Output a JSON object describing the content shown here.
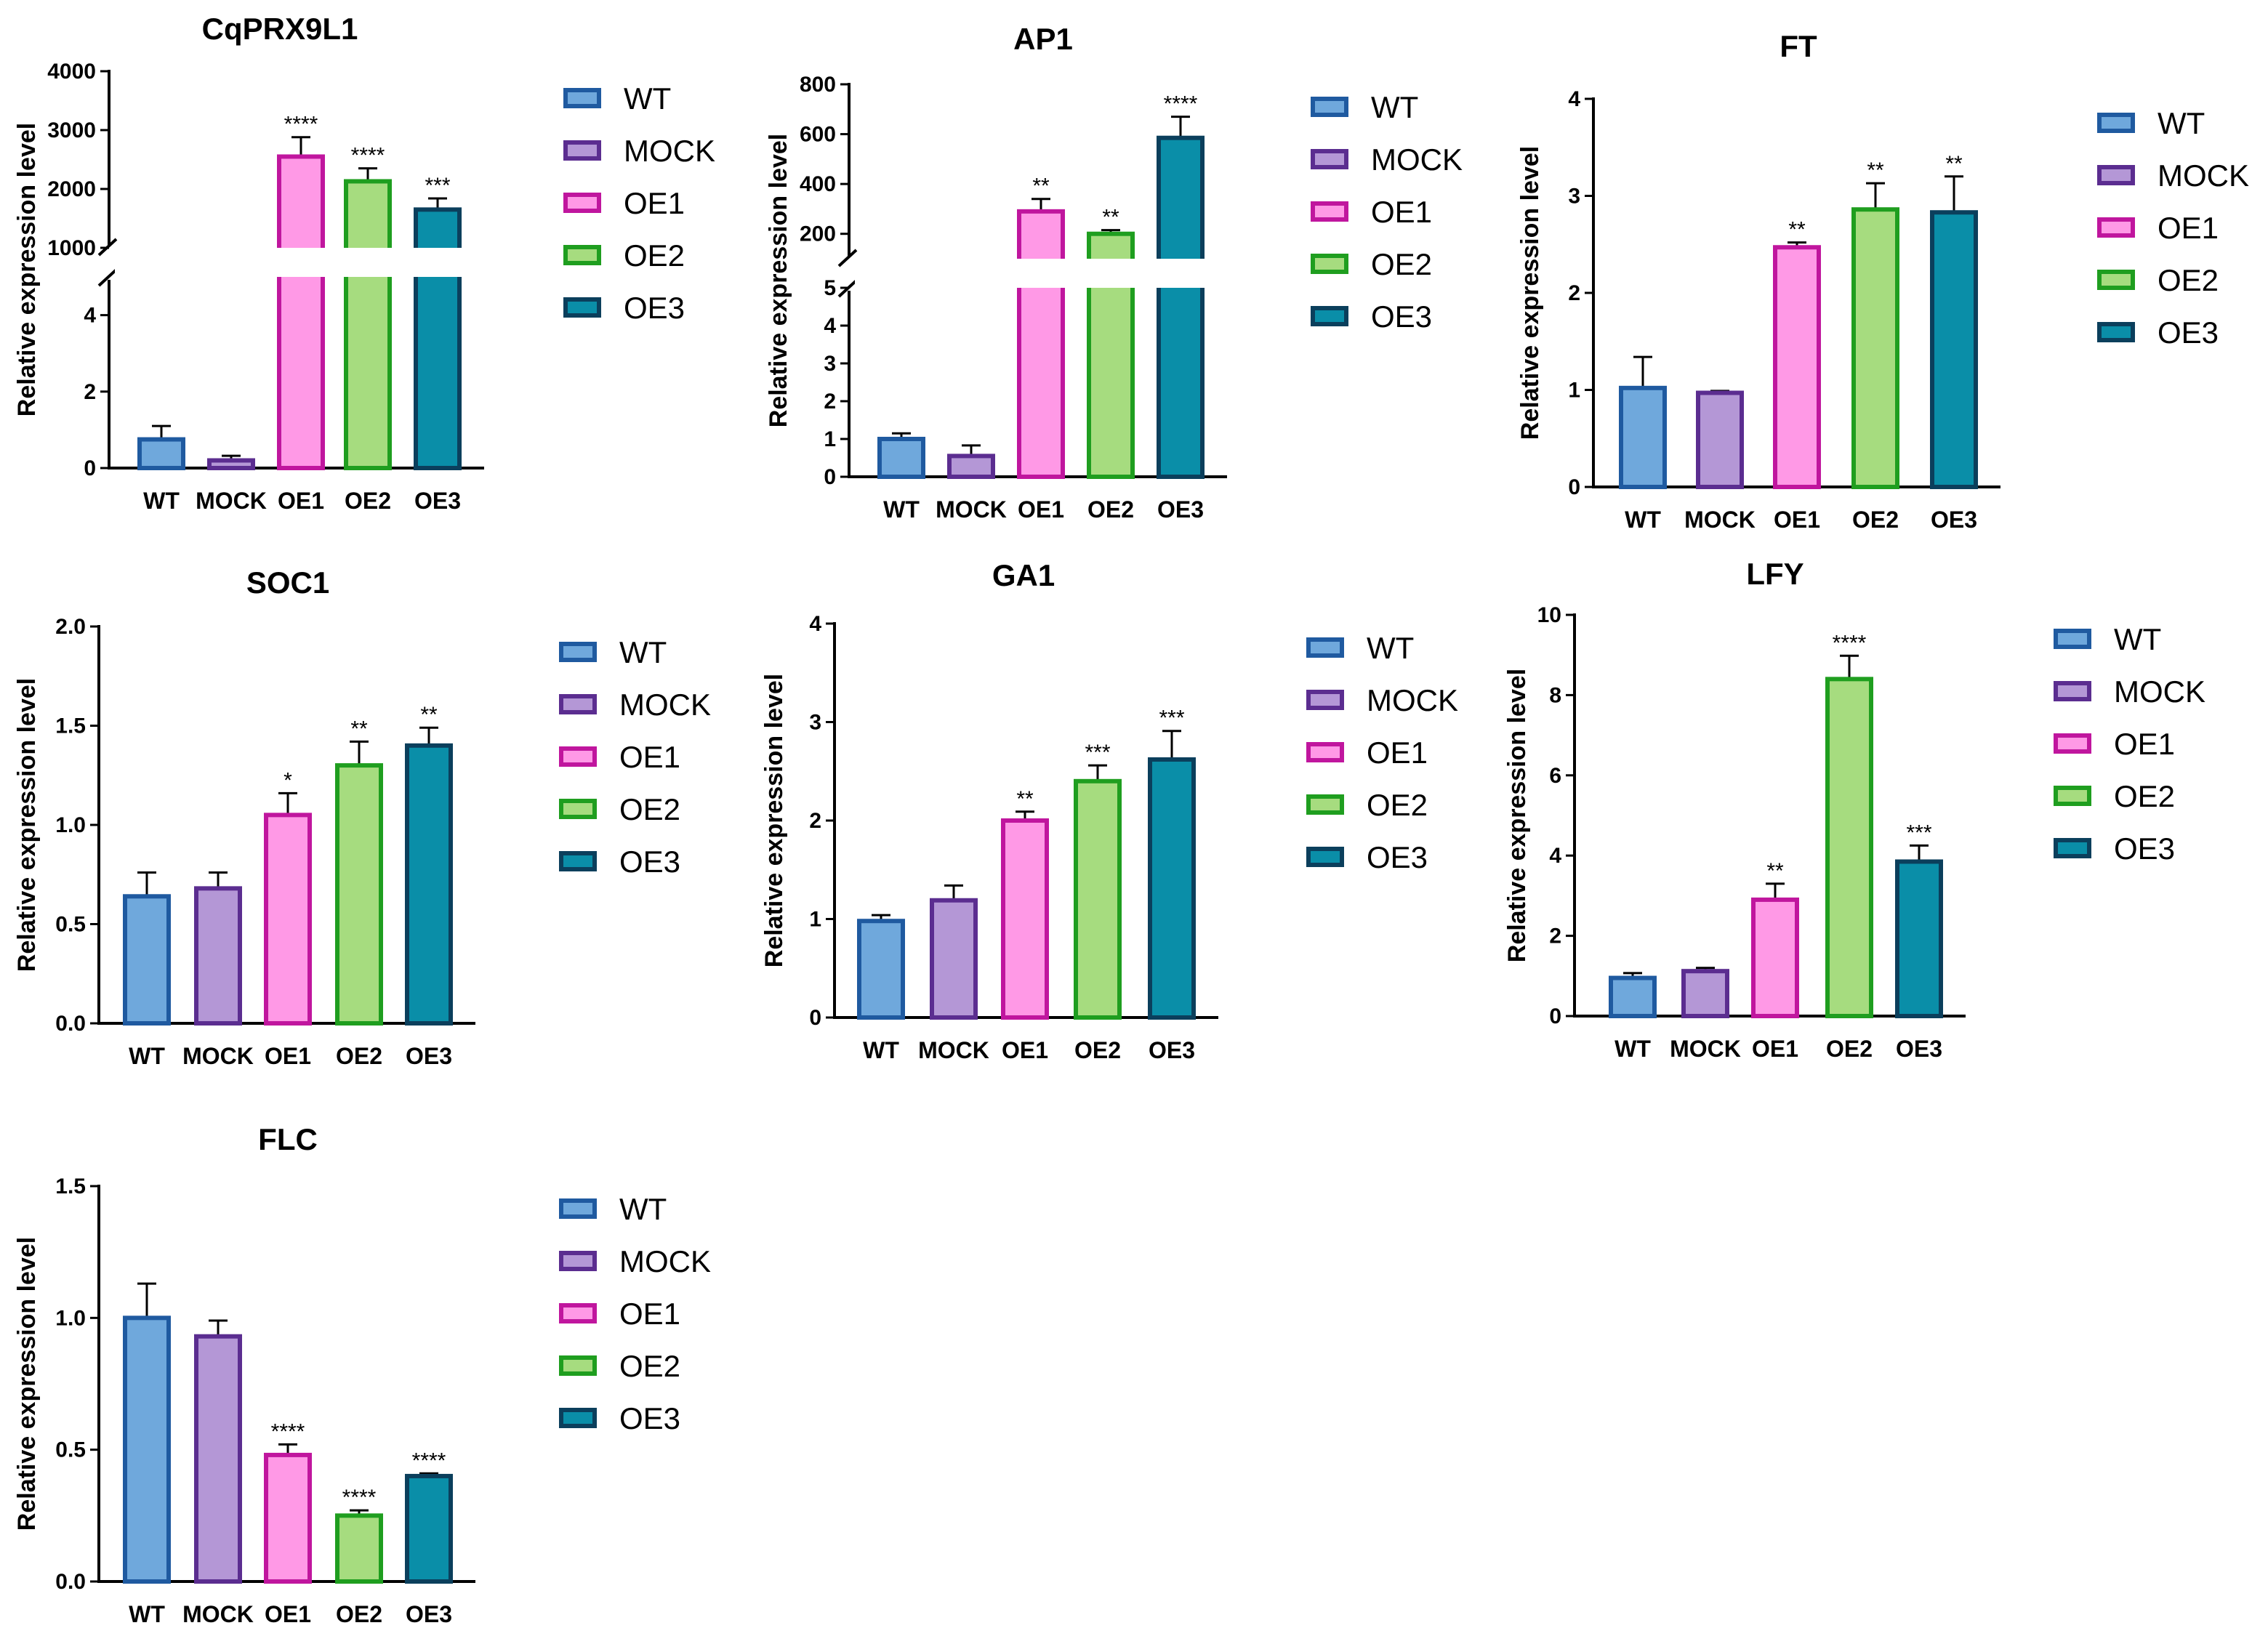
{
  "figure": {
    "series_styles": {
      "WT": {
        "fill": "#6fa8dc",
        "stroke": "#1f5aa0"
      },
      "MOCK": {
        "fill": "#b497d6",
        "stroke": "#5b2d90"
      },
      "OE1": {
        "fill": "#ff99e6",
        "stroke": "#c0169e"
      },
      "OE2": {
        "fill": "#a6dc7f",
        "stroke": "#1f9e1f"
      },
      "OE3": {
        "fill": "#0a8ea8",
        "stroke": "#0b3f5c"
      }
    },
    "legend_entries": [
      "WT",
      "MOCK",
      "OE1",
      "OE2",
      "OE3"
    ]
  },
  "chart_data": [
    {
      "id": "cqprx9l1",
      "type": "bar",
      "title": "CqPRX9L1",
      "ylabel": "Relative expression level",
      "categories": [
        "WT",
        "MOCK",
        "OE1",
        "OE2",
        "OE3"
      ],
      "values": [
        0.75,
        0.2,
        2550,
        2130,
        1650
      ],
      "errors": [
        0.35,
        0.12,
        330,
        220,
        190
      ],
      "significance": [
        "",
        "",
        "****",
        "****",
        "***"
      ],
      "y_break": {
        "lower": [
          0,
          5
        ],
        "upper": [
          1000,
          4000
        ]
      },
      "lower_ticks": [
        "0",
        "2",
        "4"
      ],
      "upper_ticks": [
        "1000",
        "2000",
        "3000",
        "4000"
      ]
    },
    {
      "id": "ap1",
      "type": "bar",
      "title": "AP1",
      "ylabel": "Relative expression level",
      "categories": [
        "WT",
        "MOCK",
        "OE1",
        "OE2",
        "OE3"
      ],
      "values": [
        1.0,
        0.55,
        290,
        200,
        585
      ],
      "errors": [
        0.15,
        0.28,
        50,
        15,
        85
      ],
      "significance": [
        "",
        "",
        "**",
        "**",
        "****"
      ],
      "y_break": {
        "lower": [
          0,
          5
        ],
        "upper": [
          100,
          800
        ]
      },
      "lower_ticks": [
        "0",
        "1",
        "2",
        "3",
        "4",
        "5"
      ],
      "upper_ticks": [
        "200",
        "400",
        "600",
        "800"
      ]
    },
    {
      "id": "ft",
      "type": "bar",
      "title": "FT",
      "ylabel": "Relative expression level",
      "categories": [
        "WT",
        "MOCK",
        "OE1",
        "OE2",
        "OE3"
      ],
      "values": [
        1.02,
        0.97,
        2.47,
        2.86,
        2.83
      ],
      "errors": [
        0.32,
        0.02,
        0.05,
        0.27,
        0.37
      ],
      "significance": [
        "",
        "",
        "**",
        "**",
        "**"
      ],
      "ylim": [
        0,
        4
      ],
      "yticks": [
        "0",
        "1",
        "2",
        "3",
        "4"
      ]
    },
    {
      "id": "soc1",
      "type": "bar",
      "title": "SOC1",
      "ylabel": "Relative expression level",
      "categories": [
        "WT",
        "MOCK",
        "OE1",
        "OE2",
        "OE3"
      ],
      "values": [
        0.64,
        0.68,
        1.05,
        1.3,
        1.4
      ],
      "errors": [
        0.12,
        0.08,
        0.11,
        0.12,
        0.09
      ],
      "significance": [
        "",
        "",
        "*",
        "**",
        "**"
      ],
      "ylim": [
        0,
        2
      ],
      "yticks": [
        "0.0",
        "0.5",
        "1.0",
        "1.5",
        "2.0"
      ]
    },
    {
      "id": "ga1",
      "type": "bar",
      "title": "GA1",
      "ylabel": "Relative expression level",
      "categories": [
        "WT",
        "MOCK",
        "OE1",
        "OE2",
        "OE3"
      ],
      "values": [
        0.98,
        1.19,
        2.0,
        2.4,
        2.62
      ],
      "errors": [
        0.06,
        0.15,
        0.09,
        0.16,
        0.29
      ],
      "significance": [
        "",
        "",
        "**",
        "***",
        "***"
      ],
      "ylim": [
        0,
        4
      ],
      "yticks": [
        "0",
        "1",
        "2",
        "3",
        "4"
      ]
    },
    {
      "id": "lfy",
      "type": "bar",
      "title": "LFY",
      "ylabel": "Relative expression level",
      "categories": [
        "WT",
        "MOCK",
        "OE1",
        "OE2",
        "OE3"
      ],
      "values": [
        0.95,
        1.12,
        2.9,
        8.4,
        3.85
      ],
      "errors": [
        0.12,
        0.08,
        0.4,
        0.58,
        0.4
      ],
      "significance": [
        "",
        "",
        "**",
        "****",
        "***"
      ],
      "ylim": [
        0,
        10
      ],
      "yticks": [
        "0",
        "2",
        "4",
        "6",
        "8",
        "10"
      ]
    },
    {
      "id": "flc",
      "type": "bar",
      "title": "FLC",
      "ylabel": "Relative expression level",
      "categories": [
        "WT",
        "MOCK",
        "OE1",
        "OE2",
        "OE3"
      ],
      "values": [
        1.0,
        0.93,
        0.48,
        0.25,
        0.4
      ],
      "errors": [
        0.13,
        0.06,
        0.04,
        0.02,
        0.01
      ],
      "significance": [
        "",
        "",
        "****",
        "****",
        "****"
      ],
      "ylim": [
        0,
        1.5
      ],
      "yticks": [
        "0.0",
        "0.5",
        "1.0",
        "1.5"
      ]
    }
  ]
}
